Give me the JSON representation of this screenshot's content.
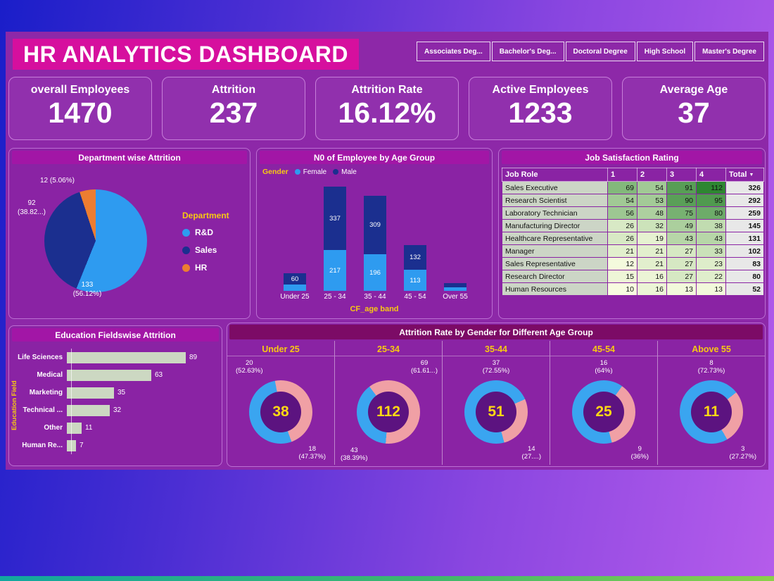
{
  "header": {
    "title": "HR ANALYTICS DASHBOARD",
    "filters": [
      "Associates Deg...",
      "Bachelor's Deg...",
      "Doctoral Degree",
      "High School",
      "Master's Degree"
    ]
  },
  "kpis": [
    {
      "label": "overall Employees",
      "value": "1470"
    },
    {
      "label": "Attrition",
      "value": "237"
    },
    {
      "label": "Attrition Rate",
      "value": "16.12%"
    },
    {
      "label": "Active Employees",
      "value": "1233"
    },
    {
      "label": "Average Age",
      "value": "37"
    }
  ],
  "colors": {
    "female_blue": "#2e9bf0",
    "male_navy": "#1b2f8f",
    "hr_orange": "#ed7d31",
    "donut_blue": "#3aa5f0",
    "donut_pink": "#f0a0a5",
    "accent_yellow": "#f7c912",
    "title_magenta": "#d60f9e"
  },
  "chart_data": [
    {
      "type": "pie",
      "title": "Department wise Attrition",
      "legend_title": "Department",
      "legend_position": "right",
      "slices": [
        {
          "name": "R&D",
          "value": 133,
          "pct_label": "(56.12%)",
          "color": "#2e9bf0"
        },
        {
          "name": "Sales",
          "value": 92,
          "pct_label": "(38.82...)",
          "color": "#1b2f8f"
        },
        {
          "name": "HR",
          "value": 12,
          "pct_label": "(5.06%)",
          "color": "#ed7d31"
        }
      ]
    },
    {
      "type": "bar",
      "subtype": "stacked-column",
      "title": "N0 of Employee by Age Group",
      "legend_title": "Gender",
      "series": [
        {
          "name": "Female",
          "color": "#2e9bf0"
        },
        {
          "name": "Male",
          "color": "#1b2f8f"
        }
      ],
      "categories": [
        "Under 25",
        "25 - 34",
        "35 - 44",
        "45 - 54",
        "Over 55"
      ],
      "male_values": [
        60,
        337,
        309,
        132,
        null
      ],
      "female_values": [
        null,
        217,
        196,
        113,
        null
      ],
      "xlabel": "CF_age band"
    },
    {
      "type": "table",
      "title": "Job Satisfaction Rating",
      "columns": [
        "Job Role",
        "1",
        "2",
        "3",
        "4",
        "Total"
      ],
      "sorted_column": "Total",
      "rows": [
        [
          "Sales Executive",
          69,
          54,
          91,
          112,
          326
        ],
        [
          "Research Scientist",
          54,
          53,
          90,
          95,
          292
        ],
        [
          "Laboratory Technician",
          56,
          48,
          75,
          80,
          259
        ],
        [
          "Manufacturing Director",
          26,
          32,
          49,
          38,
          145
        ],
        [
          "Healthcare Representative",
          26,
          19,
          43,
          43,
          131
        ],
        [
          "Manager",
          21,
          21,
          27,
          33,
          102
        ],
        [
          "Sales Representative",
          12,
          21,
          27,
          23,
          83
        ],
        [
          "Research Director",
          15,
          16,
          27,
          22,
          80
        ],
        [
          "Human Resources",
          10,
          16,
          13,
          13,
          52
        ]
      ]
    },
    {
      "type": "bar",
      "subtype": "horizontal-bar",
      "title": "Education Fieldswise Attrition",
      "ylabel": "Education Field",
      "categories": [
        "Life Sciences",
        "Medical",
        "Marketing",
        "Technical ...",
        "Other",
        "Human Re..."
      ],
      "values": [
        89,
        63,
        35,
        32,
        11,
        7
      ]
    },
    {
      "type": "pie",
      "subtype": "donut-small-multiples",
      "title": "Attrition Rate by Gender for Different Age Group",
      "donuts": [
        {
          "header": "Under 25",
          "center": "38",
          "from_deg": 160,
          "slices": [
            {
              "value": 20,
              "pct_label": "(52.63%)",
              "color": "blue",
              "pos": "tl"
            },
            {
              "value": 18,
              "pct_label": "(47.37%)",
              "color": "pink",
              "pos": "br"
            }
          ]
        },
        {
          "header": "25-34",
          "center": "112",
          "from_deg": 185,
          "slices": [
            {
              "value": 43,
              "pct_label": "(38.39%)",
              "color": "blue",
              "pos": "bl"
            },
            {
              "value": 69,
              "pct_label": "(61.61...)",
              "color": "pink",
              "pos": "tr"
            }
          ]
        },
        {
          "header": "35-44",
          "center": "51",
          "from_deg": 165,
          "slices": [
            {
              "value": 37,
              "pct_label": "(72.55%)",
              "color": "blue",
              "pos": "t"
            },
            {
              "value": 14,
              "pct_label": "(27....)",
              "color": "pink",
              "pos": "br"
            }
          ]
        },
        {
          "header": "45-54",
          "center": "25",
          "from_deg": 165,
          "slices": [
            {
              "value": 16,
              "pct_label": "(64%)",
              "color": "blue",
              "pos": "t"
            },
            {
              "value": 9,
              "pct_label": "(36%)",
              "color": "pink",
              "pos": "br"
            }
          ]
        },
        {
          "header": "Above 55",
          "center": "11",
          "from_deg": 150,
          "slices": [
            {
              "value": 8,
              "pct_label": "(72.73%)",
              "color": "blue",
              "pos": "t"
            },
            {
              "value": 3,
              "pct_label": "(27.27%)",
              "color": "pink",
              "pos": "br"
            }
          ]
        }
      ]
    }
  ]
}
